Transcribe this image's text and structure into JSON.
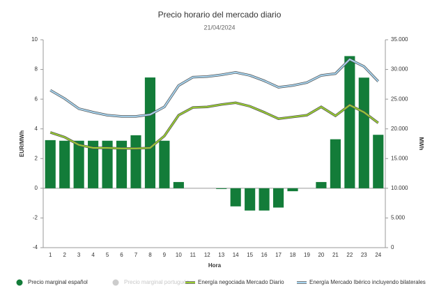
{
  "chart_data": {
    "type": "bar-line",
    "title": "Precio horario del mercado diario",
    "subtitle": "21/04/2024",
    "y_label": "EUR/MWh",
    "y2_label": "MWh",
    "x_label": "Hora",
    "categories": [
      "1",
      "2",
      "3",
      "4",
      "5",
      "6",
      "7",
      "8",
      "9",
      "10",
      "11",
      "12",
      "13",
      "14",
      "15",
      "16",
      "17",
      "18",
      "19",
      "20",
      "21",
      "22",
      "23",
      "24"
    ],
    "series": [
      {
        "name": "Precio marginal español",
        "color": "#137c39",
        "kind": "bar",
        "values": [
          3.24,
          3.2,
          3.2,
          3.2,
          3.2,
          3.2,
          3.57,
          7.46,
          3.2,
          0.42,
          0,
          0,
          -0.05,
          -1.22,
          -1.5,
          -1.5,
          -1.3,
          -0.2,
          0,
          0.42,
          3.3,
          8.9,
          7.45,
          3.6
        ]
      },
      {
        "name": "Precio marginal portugués",
        "color": "#cccccc",
        "kind": "hidden",
        "values": [
          null,
          null,
          null,
          null,
          null,
          null,
          null,
          null,
          null,
          null,
          null,
          null,
          null,
          null,
          null,
          null,
          null,
          null,
          null,
          null,
          null,
          null,
          null,
          null
        ]
      },
      {
        "name": "Energía negociada Mercado Diario",
        "color": "#9acd32",
        "kind": "line",
        "axis": "y2",
        "values": [
          19400,
          18600,
          17300,
          16800,
          16800,
          16700,
          16700,
          16800,
          18800,
          22300,
          23600,
          23700,
          24100,
          24400,
          23800,
          22800,
          21700,
          22000,
          22300,
          23700,
          22200,
          24000,
          22800,
          21000
        ]
      },
      {
        "name": "Energía Mercado Ibérico incluyendo bilaterales",
        "color": "#a7d4ef",
        "kind": "line",
        "axis": "y2",
        "values": [
          26500,
          25100,
          23400,
          22800,
          22300,
          22100,
          22100,
          22400,
          23700,
          27300,
          28700,
          28800,
          29100,
          29500,
          29000,
          28100,
          27000,
          27300,
          27800,
          29000,
          29300,
          31700,
          30500,
          28000
        ]
      }
    ],
    "ylim": [
      -4,
      10
    ],
    "yticks": [
      -4,
      -2,
      0,
      2,
      4,
      6,
      8,
      10
    ],
    "y2lim": [
      0,
      35000
    ],
    "y2ticks": [
      0,
      {
        "value": 5000,
        "label": "5.000"
      },
      {
        "value": 10000,
        "label": "10.000"
      },
      {
        "value": 15000,
        "label": "15.000"
      },
      {
        "value": 20000,
        "label": "20.000"
      },
      {
        "value": 25000,
        "label": "25.000"
      },
      {
        "value": 30000,
        "label": "30.000"
      },
      {
        "value": 35000,
        "label": "35.000"
      }
    ],
    "grid": false
  }
}
